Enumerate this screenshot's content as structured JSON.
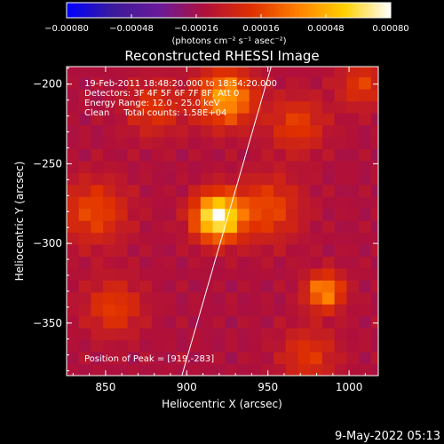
{
  "chart_data": {
    "type": "heatmap",
    "title": "Reconstructed RHESSI Image",
    "xlabel": "Heliocentric X (arcsec)",
    "ylabel": "Heliocentric Y (arcsec)",
    "xlim": [
      826,
      1018
    ],
    "ylim": [
      -383,
      -189
    ],
    "x_ticks": [
      {
        "value": 850,
        "label": "850"
      },
      {
        "value": 900,
        "label": "900"
      },
      {
        "value": 950,
        "label": "950"
      },
      {
        "value": 1000,
        "label": "1000"
      }
    ],
    "y_ticks": [
      {
        "value": -200,
        "label": "−200"
      },
      {
        "value": -250,
        "label": "−250"
      },
      {
        "value": -300,
        "label": "−300"
      },
      {
        "value": -350,
        "label": "−350"
      }
    ],
    "colorbar": {
      "range": [
        -0.0008,
        0.0008
      ],
      "ticks": [
        {
          "value": -0.0008,
          "label": "−0.00080"
        },
        {
          "value": -0.00048,
          "label": "−0.00048"
        },
        {
          "value": -0.00016,
          "label": "−0.00016"
        },
        {
          "value": 0.00016,
          "label": "0.00016"
        },
        {
          "value": 0.00048,
          "label": "0.00048"
        },
        {
          "value": 0.0008,
          "label": "0.00080"
        }
      ],
      "units_label": "(photons cm⁻² s⁻¹ asec⁻²)",
      "colors": [
        "#0000ff",
        "#3a1a9a",
        "#6a1a9a",
        "#b0103a",
        "#e03000",
        "#ff8000",
        "#ffd000",
        "#ffffff"
      ]
    },
    "annotations": [
      "19-Feb-2011 18:48:20.000 to 18:54:20.000",
      "Detectors: 3F 4F 5F 6F 7F 8F, Att 0",
      "Energy Range: 12.0 - 25.0 keV",
      "Clean     Total counts: 1.58E+04"
    ],
    "peak_label": "Position of Peak = [919,-283]",
    "peak": [
      919,
      -283
    ],
    "limb_line": [
      [
        897,
        -383
      ],
      [
        952,
        -189
      ]
    ],
    "sources": [
      {
        "x": 919,
        "y": -283,
        "value": 0.0008,
        "sigma": 10
      },
      {
        "x": 924,
        "y": -208,
        "value": 0.00045,
        "sigma": 12
      },
      {
        "x": 985,
        "y": -330,
        "value": 0.0004,
        "sigma": 8
      },
      {
        "x": 950,
        "y": -278,
        "value": 0.00018,
        "sigma": 14
      },
      {
        "x": 843,
        "y": -280,
        "value": 0.00018,
        "sigma": 14
      },
      {
        "x": 855,
        "y": -340,
        "value": 0.00015,
        "sigma": 12
      },
      {
        "x": 880,
        "y": -215,
        "value": 0.00012,
        "sigma": 12
      },
      {
        "x": 968,
        "y": -225,
        "value": 0.00015,
        "sigma": 12
      },
      {
        "x": 1008,
        "y": -200,
        "value": 0.00014,
        "sigma": 10
      },
      {
        "x": 975,
        "y": -370,
        "value": 0.00012,
        "sigma": 12
      }
    ],
    "baseline": -0.00012
  },
  "timestamp": "9-May-2022 05:13"
}
